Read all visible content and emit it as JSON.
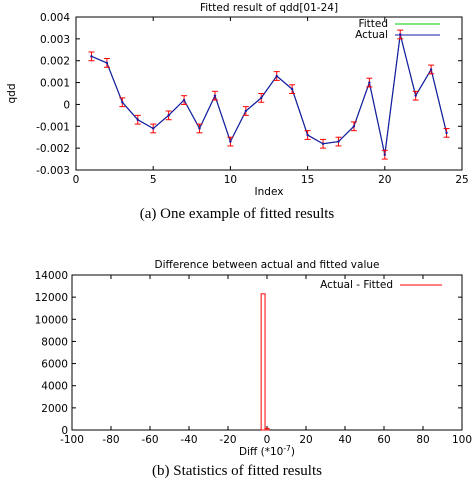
{
  "charts": {
    "a": {
      "caption": "(a)  One example of fitted results"
    },
    "b": {
      "caption": "(b)  Statistics of fitted results",
      "xlabel_base": "Diff (*10",
      "xlabel_exp": "-7",
      "xlabel_end": ")"
    }
  },
  "colors": {
    "fitted": "#00cc00",
    "actual": "#1a1aa8",
    "errorbar": "#ff0000",
    "hist": "#ff0000"
  },
  "chart_data": [
    {
      "type": "line",
      "title": "Fitted result of qdd[01-24]",
      "xlabel": "Index",
      "ylabel": "qdd",
      "xlim": [
        0,
        25
      ],
      "ylim": [
        -0.003,
        0.004
      ],
      "xticks": [
        "0",
        "5",
        "10",
        "15",
        "20",
        "25"
      ],
      "yticks": [
        "-0.003",
        "-0.002",
        "-0.001",
        "0",
        "0.001",
        "0.002",
        "0.003",
        "0.004"
      ],
      "legend_position": "top-right",
      "x": [
        1,
        2,
        3,
        4,
        5,
        6,
        7,
        8,
        9,
        10,
        11,
        12,
        13,
        14,
        15,
        16,
        17,
        18,
        19,
        20,
        21,
        22,
        23,
        24
      ],
      "series": [
        {
          "name": "Fitted",
          "values": [
            0.0022,
            0.0019,
            0.0001,
            -0.0007,
            -0.0011,
            -0.0005,
            0.0002,
            -0.0011,
            0.0004,
            -0.0017,
            -0.0003,
            0.0003,
            0.0013,
            0.0007,
            -0.0014,
            -0.0018,
            -0.0017,
            -0.001,
            0.001,
            -0.0023,
            0.0032,
            0.0004,
            0.0016,
            -0.0013
          ]
        },
        {
          "name": "Actual",
          "values": [
            0.0022,
            0.0019,
            0.0001,
            -0.0007,
            -0.0011,
            -0.0005,
            0.0002,
            -0.0011,
            0.0004,
            -0.0017,
            -0.0003,
            0.0003,
            0.0013,
            0.0007,
            -0.0014,
            -0.0018,
            -0.0017,
            -0.001,
            0.001,
            -0.0023,
            0.0032,
            0.0004,
            0.0016,
            -0.0013
          ]
        }
      ],
      "error": 0.0002
    },
    {
      "type": "bar",
      "title": "Difference between actual and fitted value",
      "xlabel": "Diff (*10-7)",
      "ylabel": "",
      "xlim": [
        -100,
        100
      ],
      "ylim": [
        0,
        14000
      ],
      "xticks": [
        "-100",
        "-80",
        "-60",
        "-40",
        "-20",
        "0",
        "20",
        "40",
        "60",
        "80",
        "100"
      ],
      "yticks": [
        "0",
        "2000",
        "4000",
        "6000",
        "8000",
        "10000",
        "12000",
        "14000"
      ],
      "legend_position": "top-right",
      "series": [
        {
          "name": "Actual - Fitted",
          "bins": [
            [
              -3,
              -1,
              12300
            ],
            [
              -1,
              1,
              150
            ]
          ]
        }
      ]
    }
  ]
}
